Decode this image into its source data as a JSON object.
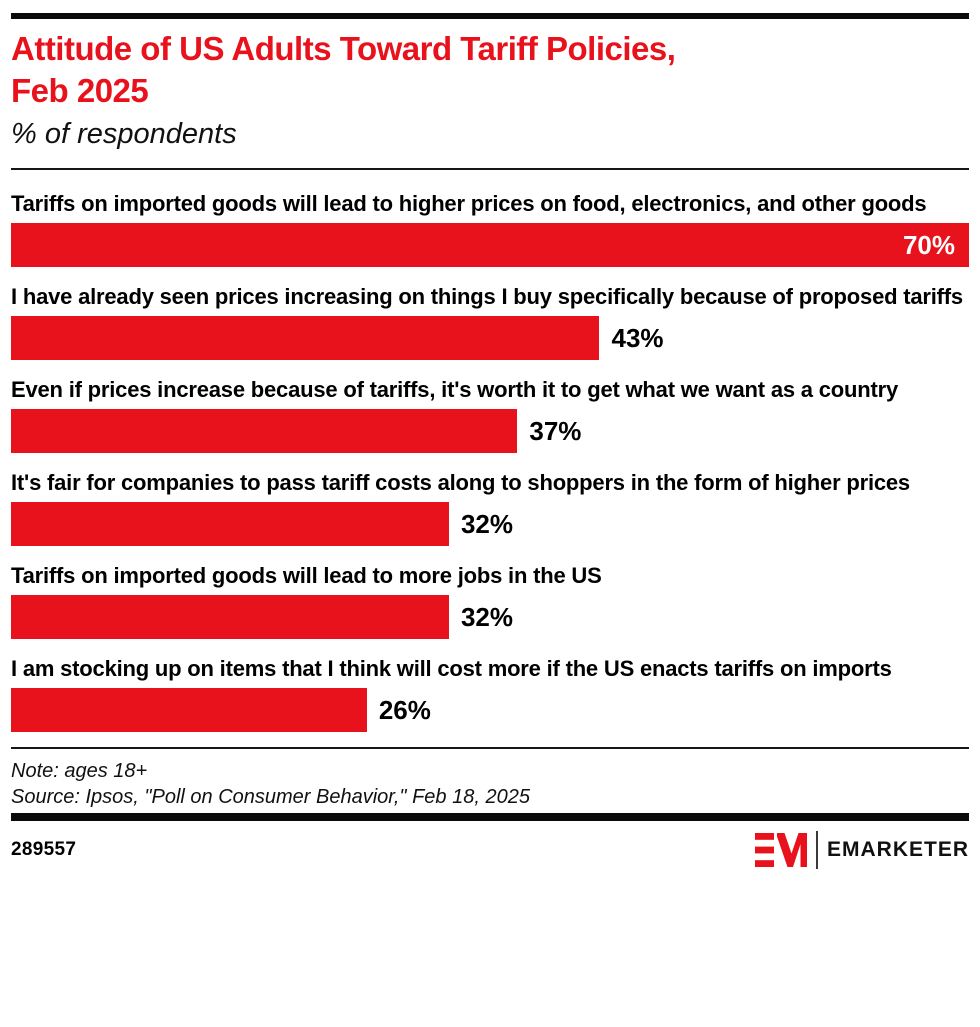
{
  "header": {
    "title_line1": "Attitude of US Adults Toward Tariff Policies,",
    "title_line2": "Feb 2025",
    "subtitle": "% of respondents"
  },
  "chart_data": {
    "type": "bar",
    "orientation": "horizontal",
    "title": "Attitude of US Adults Toward Tariff Policies, Feb 2025",
    "subtitle": "% of respondents",
    "categories": [
      "Tariffs on imported goods will lead to higher prices on food, electronics, and other goods",
      "I have already seen prices increasing on things I buy specifically because of proposed tariffs",
      "Even if prices increase because of tariffs, it's worth it to get what we want as a country",
      "It's fair for companies to pass tariff costs along to shoppers in the form of higher prices",
      "Tariffs on imported goods will lead to more jobs in the US",
      "I am stocking up on items that I think will cost more if the US enacts tariffs on imports"
    ],
    "values": [
      70,
      43,
      37,
      32,
      32,
      26
    ],
    "value_labels": [
      "70%",
      "43%",
      "37%",
      "32%",
      "32%",
      "26%"
    ],
    "value_label_inside": [
      true,
      false,
      false,
      false,
      false,
      false
    ],
    "xlim": [
      0,
      70
    ],
    "bar_color": "#E8121C",
    "grid": false,
    "legend": false
  },
  "footer": {
    "note": "Note: ages 18+",
    "source": "Source: Ipsos, \"Poll on Consumer Behavior,\" Feb 18, 2025",
    "chart_id": "289557",
    "brand_wordmark": "EMARKETER"
  },
  "colors": {
    "brand_red": "#E8121C",
    "text_black": "#000000",
    "rule_black": "#0A0A0A"
  }
}
